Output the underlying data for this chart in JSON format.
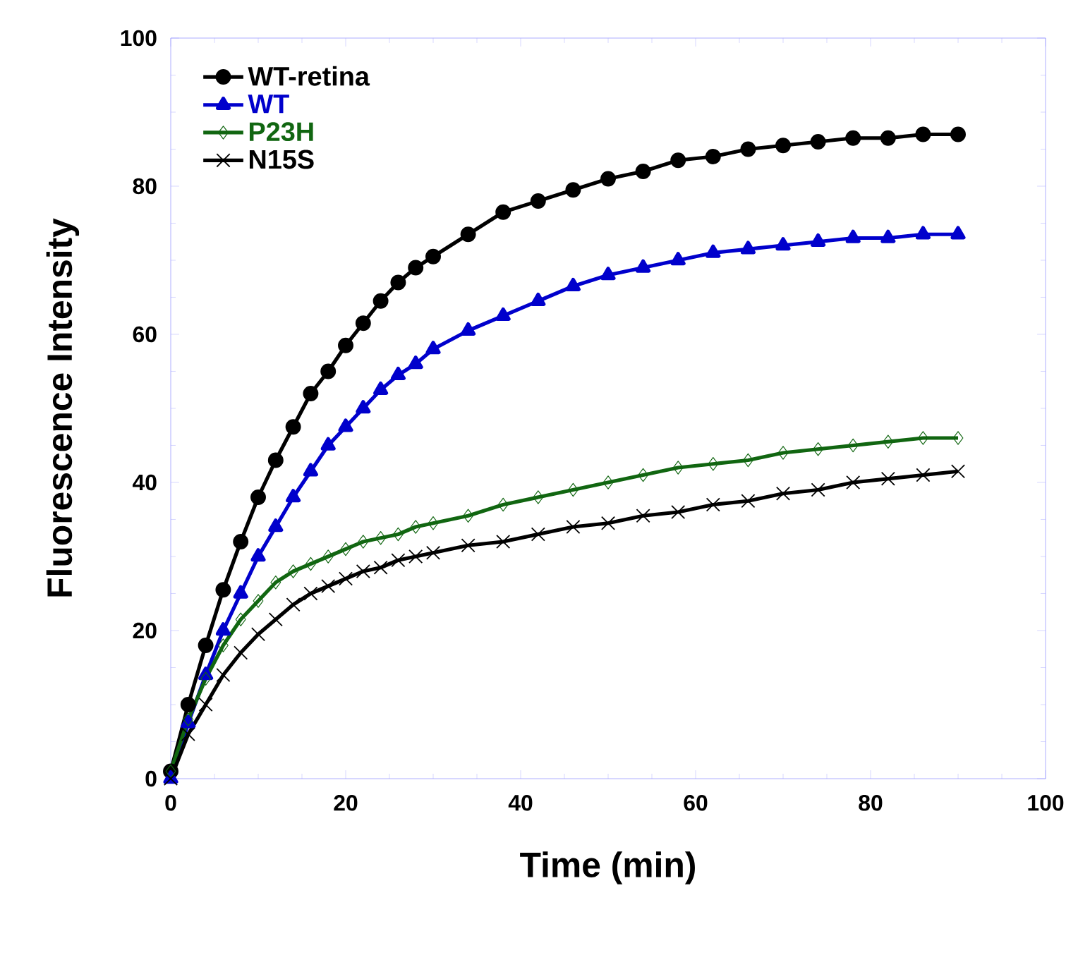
{
  "chart_data": {
    "type": "line",
    "xlabel": "Time (min)",
    "ylabel": "Fluorescence Intensity",
    "x": [
      0,
      2,
      4,
      6,
      8,
      10,
      12,
      14,
      16,
      18,
      20,
      22,
      24,
      26,
      28,
      30,
      34,
      38,
      42,
      46,
      50,
      54,
      58,
      62,
      66,
      70,
      74,
      78,
      82,
      86,
      90
    ],
    "series": [
      {
        "name": "WT-retina",
        "color": "#000000",
        "marker": "circle",
        "values": [
          1,
          10,
          18,
          25.5,
          32,
          38,
          43,
          47.5,
          52,
          55,
          58.5,
          61.5,
          64.5,
          67,
          69,
          70.5,
          73.5,
          76.5,
          78,
          79.5,
          81,
          82,
          83.5,
          84,
          85,
          85.5,
          86,
          86.5,
          86.5,
          87,
          87
        ]
      },
      {
        "name": "WT",
        "color": "#0000cc",
        "marker": "triangle",
        "values": [
          0,
          7.5,
          14,
          20,
          25,
          30,
          34,
          38,
          41.5,
          45,
          47.5,
          50,
          52.5,
          54.5,
          56,
          58,
          60.5,
          62.5,
          64.5,
          66.5,
          68,
          69,
          70,
          71,
          71.5,
          72,
          72.5,
          73,
          73,
          73.5,
          73.5
        ]
      },
      {
        "name": "P23H",
        "color": "#116611",
        "marker": "diamond",
        "values": [
          1,
          8,
          13.5,
          18,
          21.5,
          24,
          26.5,
          28,
          29,
          30,
          31,
          32,
          32.5,
          33,
          34,
          34.5,
          35.5,
          37,
          38,
          39,
          40,
          41,
          42,
          42.5,
          43,
          44,
          44.5,
          45,
          45.5,
          46,
          46
        ]
      },
      {
        "name": "N15S",
        "color": "#000000",
        "marker": "cross",
        "values": [
          0,
          6,
          10,
          14,
          17,
          19.5,
          21.5,
          23.5,
          25,
          26,
          27,
          28,
          28.5,
          29.5,
          30,
          30.5,
          31.5,
          32,
          33,
          34,
          34.5,
          35.5,
          36,
          37,
          37.5,
          38.5,
          39,
          40,
          40.5,
          41,
          41.5
        ]
      }
    ],
    "xlim": [
      0,
      100
    ],
    "ylim": [
      0,
      100
    ],
    "xticks": [
      0,
      20,
      40,
      60,
      80,
      100
    ],
    "yticks": [
      0,
      20,
      40,
      60,
      80,
      100
    ],
    "grid": false,
    "legend": "top left",
    "line_style": "solid"
  }
}
